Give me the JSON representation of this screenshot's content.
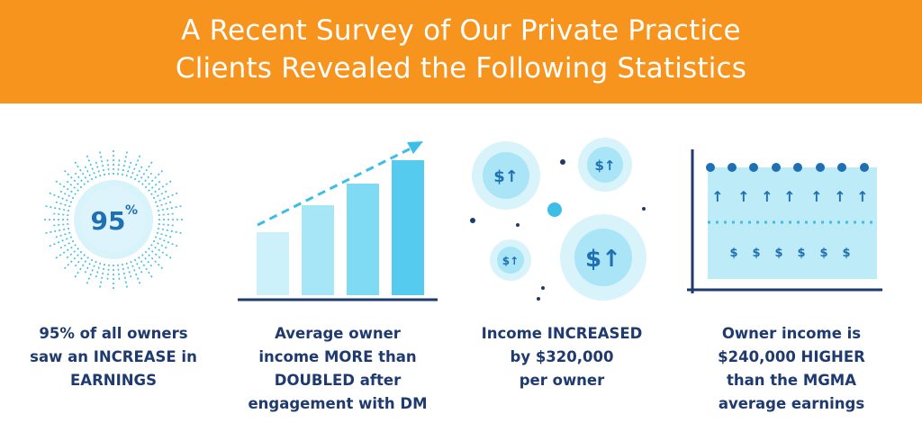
{
  "header": {
    "title_line1": "A Recent Survey of Our Private Practice",
    "title_line2": "Clients Revealed the Following Statistics",
    "background": "#F7941D"
  },
  "colors": {
    "text_dark": "#1E3A6E",
    "accent_blue": "#3DBEE6",
    "light_blue": "#BDEBF7",
    "navy": "#1E3A6E"
  },
  "stats": [
    {
      "icon": "sunburst-percent-icon",
      "badge_value": "95",
      "badge_unit": "%",
      "lines": [
        "95% of all owners",
        "saw an INCREASE in",
        "EARNINGS"
      ]
    },
    {
      "icon": "rising-bar-chart-icon",
      "bar_levels": [
        0.35,
        0.55,
        0.75,
        0.95
      ],
      "lines": [
        "Average owner",
        "income MORE than",
        "DOUBLED after",
        "engagement with DM"
      ]
    },
    {
      "icon": "dollar-bubbles-icon",
      "coin_label": "$↑",
      "lines": [
        "Income INCREASED",
        "by $320,000",
        "per owner"
      ]
    },
    {
      "icon": "income-comparison-chart-icon",
      "dollar_symbol": "$",
      "arrow_symbol": "↑",
      "lines": [
        "Owner income is",
        "$240,000 HIGHER",
        "than the MGMA",
        "average earnings"
      ]
    }
  ]
}
